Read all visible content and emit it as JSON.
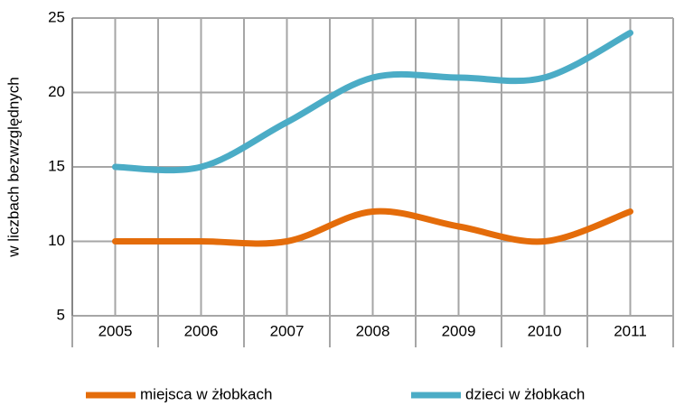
{
  "chart_data": {
    "type": "line",
    "y_label": "w liczbach bezwzględnych",
    "categories": [
      "2005",
      "2006",
      "2007",
      "2008",
      "2009",
      "2010",
      "2011"
    ],
    "series": [
      {
        "name": "miejsca w żłobkach",
        "color": "#e46c0a",
        "values": [
          10,
          10,
          10,
          12,
          11,
          10,
          12
        ]
      },
      {
        "name": "dzieci w żłobkach",
        "color": "#4bacc6",
        "values": [
          15,
          15,
          18,
          21,
          21,
          21,
          24
        ]
      }
    ],
    "ylim": [
      5,
      25
    ],
    "yticks": [
      5,
      10,
      15,
      20,
      25
    ],
    "grid": true,
    "smooth": true,
    "legend": "bottom"
  }
}
